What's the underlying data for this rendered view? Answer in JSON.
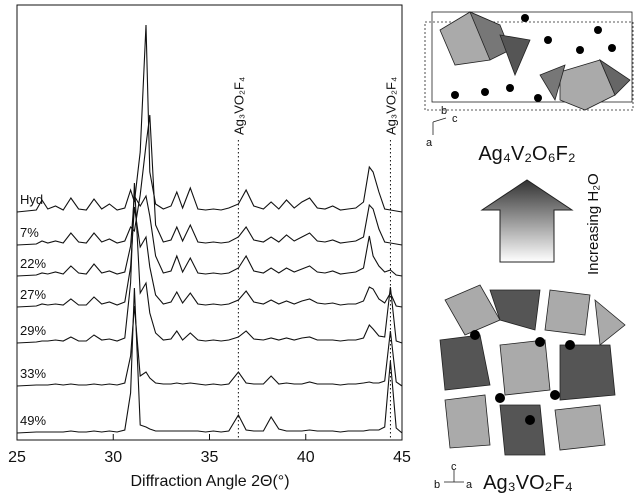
{
  "chart_data": {
    "type": "line",
    "x_label": "Diffraction Angle 2Θ(°)",
    "xlim": [
      25,
      45
    ],
    "xticks": [
      25,
      30,
      35,
      40,
      45
    ],
    "x": [
      25,
      26,
      26.3,
      26.6,
      27,
      27.4,
      27.8,
      28.2,
      28.6,
      29,
      29.4,
      29.8,
      30.2,
      30.6,
      30.9,
      31.1,
      31.4,
      31.7,
      31.9,
      32.2,
      32.6,
      33,
      33.3,
      33.6,
      34,
      34.4,
      34.8,
      35.2,
      35.6,
      36,
      36.5,
      36.9,
      37.3,
      37.8,
      38.2,
      38.6,
      39,
      39.4,
      39.8,
      40.2,
      40.6,
      41,
      41.4,
      41.8,
      42.2,
      42.6,
      43,
      43.3,
      43.5,
      43.8,
      44.1,
      44.4,
      44.7,
      45
    ],
    "series": [
      {
        "name": "Hyd",
        "color": "#111111",
        "values": [
          0,
          2,
          12,
          3,
          6,
          2,
          14,
          3,
          2,
          13,
          3,
          8,
          2,
          4,
          22,
          10,
          60,
          187,
          40,
          8,
          3,
          6,
          20,
          4,
          24,
          3,
          2,
          3,
          2,
          4,
          8,
          22,
          6,
          3,
          10,
          3,
          12,
          4,
          10,
          14,
          4,
          3,
          6,
          2,
          3,
          4,
          10,
          45,
          40,
          20,
          3,
          2,
          1,
          0
        ]
      },
      {
        "name": "7%",
        "color": "#111111",
        "values": [
          0,
          1,
          4,
          2,
          4,
          2,
          12,
          3,
          2,
          12,
          3,
          6,
          2,
          4,
          18,
          14,
          50,
          100,
          130,
          20,
          3,
          5,
          18,
          4,
          20,
          3,
          2,
          3,
          2,
          3,
          8,
          18,
          5,
          3,
          8,
          3,
          10,
          4,
          8,
          12,
          4,
          3,
          5,
          2,
          3,
          4,
          8,
          40,
          36,
          16,
          3,
          2,
          1,
          0
        ]
      },
      {
        "name": "22%",
        "color": "#111111",
        "values": [
          0,
          1,
          3,
          2,
          4,
          2,
          10,
          3,
          2,
          12,
          3,
          5,
          2,
          4,
          30,
          80,
          70,
          80,
          60,
          20,
          3,
          5,
          20,
          4,
          18,
          3,
          2,
          3,
          2,
          3,
          8,
          20,
          5,
          3,
          8,
          3,
          8,
          4,
          7,
          10,
          4,
          3,
          5,
          2,
          3,
          4,
          8,
          40,
          20,
          10,
          4,
          6,
          1,
          0
        ]
      },
      {
        "name": "27%",
        "color": "#111111",
        "values": [
          0,
          1,
          3,
          2,
          3,
          2,
          8,
          2,
          2,
          10,
          3,
          5,
          2,
          5,
          40,
          100,
          60,
          70,
          40,
          12,
          3,
          5,
          15,
          4,
          14,
          3,
          2,
          3,
          2,
          3,
          7,
          16,
          5,
          3,
          7,
          3,
          6,
          3,
          6,
          8,
          4,
          3,
          4,
          2,
          3,
          3,
          6,
          20,
          18,
          8,
          4,
          14,
          1,
          0
        ]
      },
      {
        "name": "29%",
        "color": "#111111",
        "values": [
          0,
          1,
          2,
          2,
          3,
          2,
          6,
          2,
          2,
          8,
          3,
          4,
          2,
          5,
          60,
          160,
          50,
          60,
          30,
          10,
          3,
          4,
          12,
          3,
          10,
          3,
          2,
          3,
          2,
          3,
          6,
          12,
          4,
          3,
          5,
          3,
          5,
          3,
          5,
          6,
          3,
          3,
          3,
          2,
          3,
          3,
          5,
          18,
          14,
          7,
          6,
          56,
          2,
          0
        ]
      },
      {
        "name": "33%",
        "color": "#111111",
        "values": [
          0,
          1,
          1,
          1,
          2,
          1,
          2,
          1,
          1,
          2,
          1,
          2,
          1,
          3,
          30,
          80,
          10,
          14,
          8,
          3,
          2,
          2,
          3,
          2,
          3,
          2,
          1,
          2,
          1,
          2,
          14,
          3,
          2,
          2,
          10,
          2,
          3,
          2,
          2,
          4,
          2,
          2,
          2,
          1,
          2,
          2,
          3,
          4,
          3,
          3,
          5,
          55,
          4,
          0
        ]
      },
      {
        "name": "49%",
        "color": "#111111",
        "values": [
          0,
          1,
          1,
          1,
          1,
          1,
          2,
          1,
          1,
          2,
          1,
          2,
          1,
          3,
          40,
          145,
          8,
          6,
          4,
          2,
          2,
          2,
          2,
          2,
          2,
          2,
          1,
          2,
          1,
          2,
          18,
          3,
          2,
          2,
          16,
          4,
          2,
          2,
          2,
          3,
          2,
          2,
          2,
          1,
          2,
          2,
          2,
          3,
          3,
          3,
          6,
          72,
          5,
          0
        ]
      }
    ],
    "annotations": [
      {
        "text": "Ag₃VO₂F₄",
        "x": 36.5
      },
      {
        "text": "Ag₃VO₂F₄",
        "x": 44.4
      }
    ]
  },
  "structures": {
    "top": {
      "label": "Ag₄V₂O₆F₂",
      "axes": [
        "b",
        "c",
        "a"
      ]
    },
    "arrow": "Increasing H₂O",
    "bottom": {
      "label": "Ag₃VO₂F₄",
      "axes": [
        "c",
        "b",
        "a"
      ]
    }
  }
}
